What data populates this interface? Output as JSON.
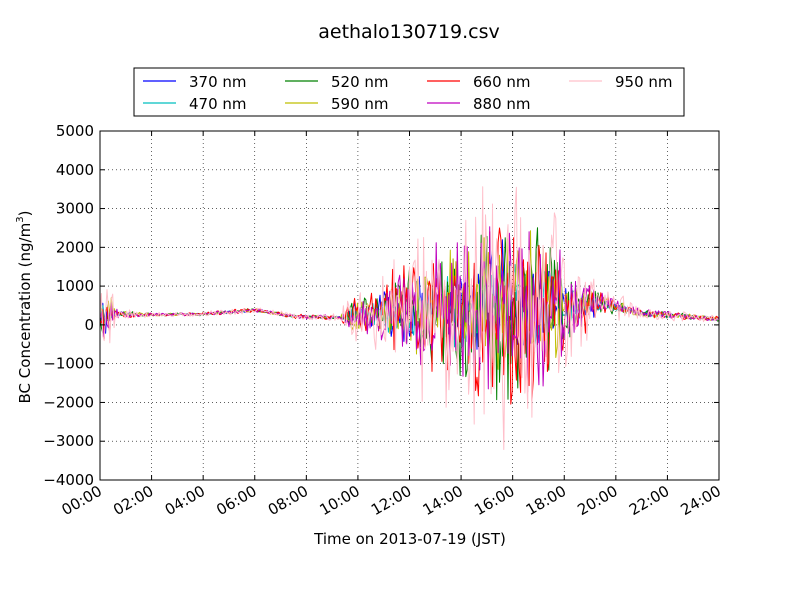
{
  "chart_data": {
    "type": "line",
    "title": "aethalo130719.csv",
    "xlabel": "Time on 2013-07-19 (JST)",
    "ylabel": "BC Concentration (ng/m³)",
    "ylabel_main": "BC Concentration (ng/m",
    "ylabel_sup": "3",
    "ylabel_end": ")",
    "xlim": [
      "00:00",
      "24:00"
    ],
    "ylim": [
      -4000,
      5000
    ],
    "xticks": [
      "00:00",
      "02:00",
      "04:00",
      "06:00",
      "08:00",
      "10:00",
      "12:00",
      "14:00",
      "16:00",
      "18:00",
      "20:00",
      "22:00",
      "24:00"
    ],
    "yticks": [
      "−4000",
      "−3000",
      "−2000",
      "−1000",
      "0",
      "1000",
      "2000",
      "3000",
      "4000",
      "5000"
    ],
    "grid": true,
    "legend_position": "top",
    "series": [
      {
        "name": "370 nm",
        "color": "#0000ff",
        "seed": 11,
        "spread": 0.55
      },
      {
        "name": "470 nm",
        "color": "#00bfbf",
        "seed": 23,
        "spread": 0.45
      },
      {
        "name": "520 nm",
        "color": "#008000",
        "seed": 37,
        "spread": 0.75
      },
      {
        "name": "590 nm",
        "color": "#bfbf00",
        "seed": 41,
        "spread": 0.65
      },
      {
        "name": "660 nm",
        "color": "#ff0000",
        "seed": 53,
        "spread": 0.9
      },
      {
        "name": "880 nm",
        "color": "#bf00bf",
        "seed": 67,
        "spread": 0.8
      },
      {
        "name": "950 nm",
        "color": "#ffc0cb",
        "seed": 79,
        "spread": 1.3
      }
    ],
    "profile": [
      {
        "t": 0.0,
        "base": 300,
        "amp": 250
      },
      {
        "t": 0.2,
        "base": 300,
        "amp": 900
      },
      {
        "t": 0.6,
        "base": 300,
        "amp": 120
      },
      {
        "t": 2.0,
        "base": 260,
        "amp": 40
      },
      {
        "t": 4.0,
        "base": 280,
        "amp": 40
      },
      {
        "t": 6.0,
        "base": 380,
        "amp": 50
      },
      {
        "t": 7.5,
        "base": 220,
        "amp": 50
      },
      {
        "t": 9.3,
        "base": 190,
        "amp": 60
      },
      {
        "t": 9.8,
        "base": 200,
        "amp": 500
      },
      {
        "t": 10.5,
        "base": 300,
        "amp": 450
      },
      {
        "t": 12.0,
        "base": 400,
        "amp": 1300
      },
      {
        "t": 14.0,
        "base": 400,
        "amp": 1700
      },
      {
        "t": 16.0,
        "base": 400,
        "amp": 2500
      },
      {
        "t": 17.5,
        "base": 400,
        "amp": 1800
      },
      {
        "t": 18.5,
        "base": 400,
        "amp": 700
      },
      {
        "t": 19.5,
        "base": 550,
        "amp": 250
      },
      {
        "t": 21.0,
        "base": 300,
        "amp": 100
      },
      {
        "t": 24.0,
        "base": 150,
        "amp": 60
      }
    ]
  }
}
